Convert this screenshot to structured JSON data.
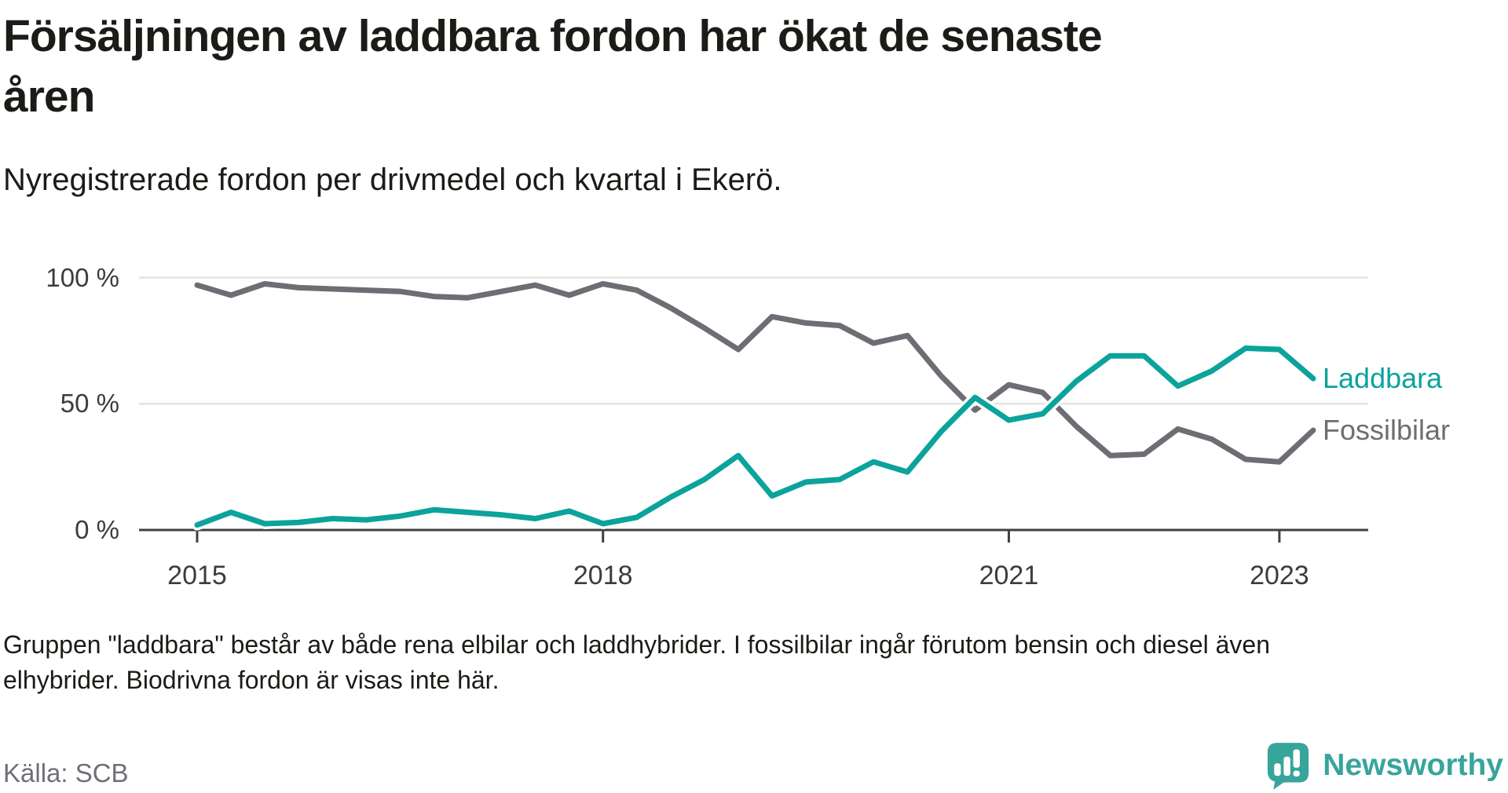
{
  "header": {
    "title": "Försäljningen av laddbara fordon har ökat de senaste åren",
    "title_lines": [
      "Försäljningen av laddbara fordon har ökat de senaste",
      "åren"
    ],
    "subtitle": "Nyregistrerade fordon per drivmedel och kvartal i Ekerö."
  },
  "chart_data": {
    "type": "line",
    "title": "Försäljningen av laddbara fordon har ökat de senaste åren",
    "subtitle": "Nyregistrerade fordon per drivmedel och kvartal i Ekerö",
    "x": [
      "2015 Q1",
      "2015 Q2",
      "2015 Q3",
      "2015 Q4",
      "2016 Q1",
      "2016 Q2",
      "2016 Q3",
      "2016 Q4",
      "2017 Q1",
      "2017 Q2",
      "2017 Q3",
      "2017 Q4",
      "2018 Q1",
      "2018 Q2",
      "2018 Q3",
      "2018 Q4",
      "2019 Q1",
      "2019 Q2",
      "2019 Q3",
      "2019 Q4",
      "2020 Q1",
      "2020 Q2",
      "2020 Q3",
      "2020 Q4",
      "2021 Q1",
      "2021 Q2",
      "2021 Q3",
      "2021 Q4",
      "2022 Q1",
      "2022 Q2",
      "2022 Q3",
      "2022 Q4",
      "2023 Q1",
      "2023 Q2"
    ],
    "series": [
      {
        "name": "Laddbara",
        "color": "#0ba39b",
        "values": [
          2,
          7,
          2.5,
          3,
          4.5,
          4,
          5.5,
          8,
          7,
          6,
          4.5,
          7.5,
          2.5,
          5,
          13,
          20,
          29.5,
          13.5,
          19,
          20,
          27,
          23,
          39,
          52.5,
          43.5,
          46,
          59,
          69,
          69,
          57,
          63,
          72,
          71.5,
          60
        ]
      },
      {
        "name": "Fossilbilar",
        "color": "#6d6d73",
        "values": [
          97,
          93,
          97.5,
          96,
          95.5,
          95,
          94.5,
          92.5,
          92,
          94.5,
          97,
          93,
          97.5,
          95,
          88,
          80,
          71.5,
          84.5,
          82,
          81,
          74,
          77,
          61,
          47.5,
          57.5,
          54.5,
          41,
          29.5,
          30,
          40,
          36,
          28,
          27,
          39.5
        ]
      }
    ],
    "unit": "%",
    "ylim": [
      0,
      100
    ],
    "yticks": [
      {
        "value": 100,
        "label": "100 %"
      },
      {
        "value": 50,
        "label": "50 %"
      },
      {
        "value": 0,
        "label": "0 %"
      }
    ],
    "xticks": [
      {
        "index": 0,
        "label": "2015"
      },
      {
        "index": 12,
        "label": "2018"
      },
      {
        "index": 24,
        "label": "2021"
      },
      {
        "index": 32,
        "label": "2023"
      }
    ],
    "grid": "horizontal",
    "legend_position": "right-end-of-lines"
  },
  "footnote": {
    "text": "Gruppen \"laddbara\" består av både rena elbilar och laddhybrider. I fossilbilar ingår förutom bensin och diesel även elhybrider. Biodrivna fordon är visas inte här.",
    "lines": [
      "Gruppen \"laddbara\" består av både rena elbilar och laddhybrider. I fossilbilar ingår förutom bensin och diesel även",
      "elhybrider. Biodrivna fordon är visas inte här."
    ]
  },
  "source": {
    "label": "Källa: SCB"
  },
  "logo": {
    "text": "Newsworthy",
    "color": "#38a59c"
  },
  "colors": {
    "laddbara": "#0ba39b",
    "fossilbilar": "#6d6d73",
    "axis": "#404040",
    "gridline": "#e3e3e3",
    "text": "#1b1b17",
    "muted_text": "#6f6f7a"
  }
}
